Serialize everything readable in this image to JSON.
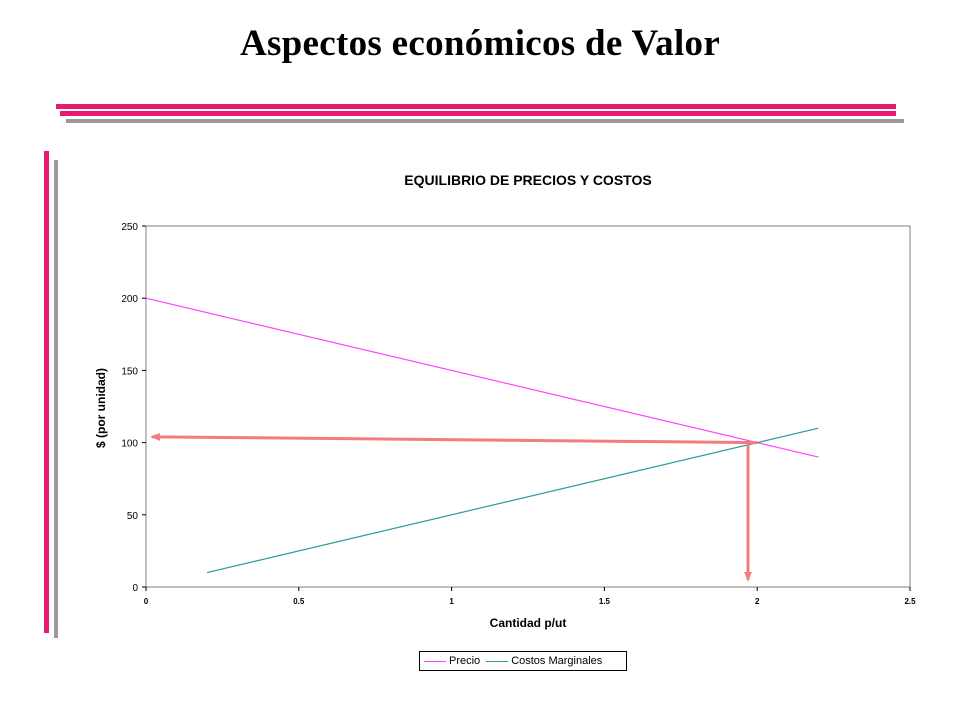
{
  "slide": {
    "title": "Aspectos económicos  de Valor"
  },
  "colors": {
    "rule_pink": "#e8196e",
    "rule_gray": "#9a9a9a",
    "arrow": "#f47c7c"
  },
  "chart_data": {
    "type": "line",
    "title": "EQUILIBRIO DE PRECIOS Y COSTOS",
    "xlabel": "Cantidad p/ut",
    "ylabel": "$ (por unidad)",
    "xlim": [
      0,
      2.5
    ],
    "ylim": [
      0,
      250
    ],
    "x_ticks": [
      0,
      0.5,
      1,
      1.5,
      2,
      2.5
    ],
    "y_ticks": [
      0,
      50,
      100,
      150,
      200,
      250
    ],
    "x_tick_labels": [
      "0",
      "0.5",
      "1",
      "1.5",
      "2",
      "2.5"
    ],
    "y_tick_labels": [
      "0",
      "50",
      "100",
      "150",
      "200",
      "250"
    ],
    "grid": false,
    "legend_position": "bottom",
    "series": [
      {
        "name": "Precio",
        "color": "#ff44ff",
        "x": [
          0,
          2.2
        ],
        "y": [
          200,
          90
        ]
      },
      {
        "name": "Costos Marginales",
        "color": "#2a9a9a",
        "x": [
          0.2,
          2.2
        ],
        "y": [
          10,
          110
        ]
      }
    ],
    "annotations": [
      {
        "type": "arrow",
        "from": [
          2,
          100
        ],
        "to": [
          0.02,
          104
        ],
        "color": "#f47c7c"
      },
      {
        "type": "arrow",
        "from": [
          1.97,
          101
        ],
        "to": [
          1.97,
          5
        ],
        "color": "#f47c7c"
      }
    ]
  }
}
